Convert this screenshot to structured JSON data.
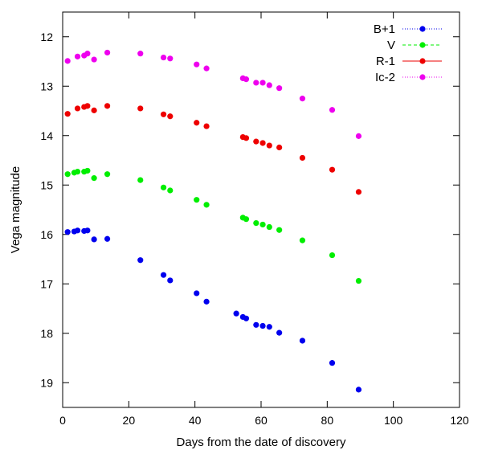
{
  "chart_data": {
    "type": "scatter",
    "title": "",
    "xlabel": "Days from the date of discovery",
    "ylabel": "Vega magnitude",
    "xlim": [
      0,
      120
    ],
    "ylim": [
      19.5,
      11.5
    ],
    "y_inverted": true,
    "xticks": [
      0,
      20,
      40,
      60,
      80,
      100,
      120
    ],
    "yticks": [
      12,
      13,
      14,
      15,
      16,
      17,
      18,
      19
    ],
    "grid": false,
    "legend_position": "top-right",
    "series": [
      {
        "name": "B+1",
        "color": "#0000ee",
        "line_style": "dotted",
        "x": [
          1.5,
          3.5,
          4.5,
          6.5,
          7.5,
          9.5,
          13.5,
          23.5,
          30.5,
          32.5,
          40.5,
          43.5,
          52.5,
          54.5,
          55.5,
          58.5,
          60.5,
          62.5,
          65.5,
          72.5,
          81.5,
          89.5
        ],
        "y": [
          15.95,
          15.94,
          15.92,
          15.93,
          15.92,
          16.1,
          16.09,
          16.52,
          16.82,
          16.93,
          17.19,
          17.36,
          17.6,
          17.67,
          17.7,
          17.83,
          17.85,
          17.87,
          17.99,
          18.15,
          18.6,
          19.14
        ]
      },
      {
        "name": "V",
        "color": "#00ee00",
        "line_style": "dashed",
        "x": [
          1.5,
          3.5,
          4.5,
          6.5,
          7.5,
          9.5,
          13.5,
          23.5,
          30.5,
          32.5,
          40.5,
          43.5,
          54.5,
          55.5,
          58.5,
          60.5,
          62.5,
          65.5,
          72.5,
          81.5,
          89.5
        ],
        "y": [
          14.78,
          14.75,
          14.73,
          14.73,
          14.71,
          14.86,
          14.78,
          14.9,
          15.05,
          15.11,
          15.3,
          15.4,
          15.66,
          15.69,
          15.77,
          15.8,
          15.85,
          15.91,
          16.12,
          16.42,
          16.94
        ]
      },
      {
        "name": "R-1",
        "color": "#ee0000",
        "line_style": "solid",
        "x": [
          1.5,
          4.5,
          6.5,
          7.5,
          9.5,
          13.5,
          23.5,
          30.5,
          32.5,
          40.5,
          43.5,
          54.5,
          55.5,
          58.5,
          60.5,
          62.5,
          65.5,
          72.5,
          81.5,
          89.5
        ],
        "y": [
          13.56,
          13.45,
          13.42,
          13.4,
          13.49,
          13.4,
          13.45,
          13.57,
          13.61,
          13.74,
          13.81,
          14.03,
          14.05,
          14.12,
          14.15,
          14.2,
          14.24,
          14.45,
          14.69,
          15.14
        ]
      },
      {
        "name": "Ic-2",
        "color": "#ee00ee",
        "line_style": "dotted",
        "x": [
          1.5,
          4.5,
          6.5,
          7.5,
          9.5,
          13.5,
          23.5,
          30.5,
          32.5,
          40.5,
          43.5,
          54.5,
          55.5,
          58.5,
          60.5,
          62.5,
          65.5,
          72.5,
          81.5,
          89.5
        ],
        "y": [
          12.49,
          12.4,
          12.38,
          12.34,
          12.46,
          12.32,
          12.34,
          12.42,
          12.44,
          12.56,
          12.64,
          12.84,
          12.86,
          12.93,
          12.93,
          12.98,
          13.04,
          13.25,
          13.48,
          14.01
        ]
      }
    ]
  }
}
